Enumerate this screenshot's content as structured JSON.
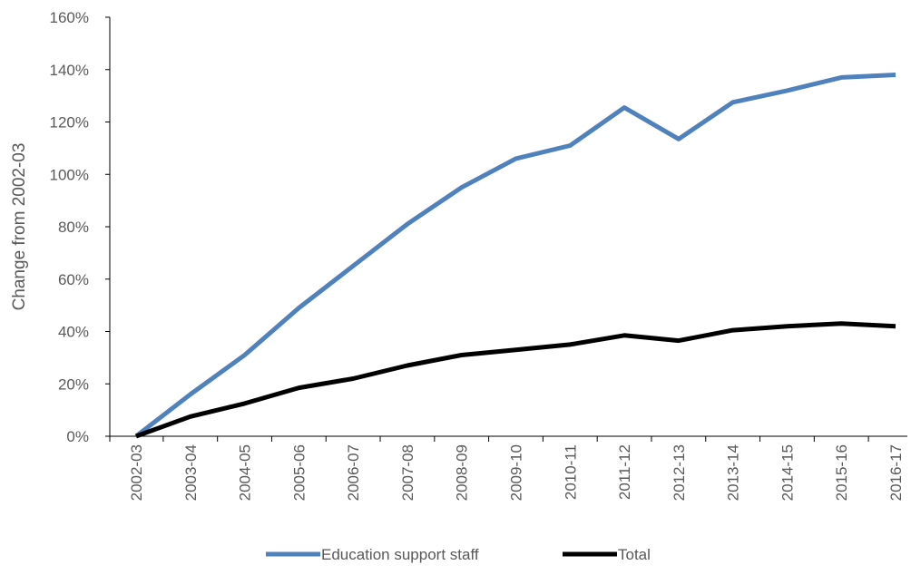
{
  "chart_data": {
    "type": "line",
    "title": "",
    "xlabel": "",
    "ylabel": "Change from 2002-03",
    "categories": [
      "2002-03",
      "2003-04",
      "2004-05",
      "2005-06",
      "2006-07",
      "2007-08",
      "2008-09",
      "2009-10",
      "2010-11",
      "2011-12",
      "2012-13",
      "2013-14",
      "2014-15",
      "2015-16",
      "2016-17"
    ],
    "series": [
      {
        "name": "Education support staff",
        "color": "#4F81BD",
        "values": [
          0,
          16,
          31,
          49,
          65,
          81,
          95,
          106,
          111,
          125.5,
          113.5,
          127.5,
          132,
          137,
          138
        ]
      },
      {
        "name": "Total",
        "color": "#000000",
        "values": [
          0,
          7.5,
          12.5,
          18.5,
          22,
          27,
          31,
          33,
          35,
          38.5,
          36.5,
          40.5,
          42,
          43,
          42
        ]
      }
    ],
    "ylim": [
      0,
      160
    ],
    "yticks": [
      0,
      20,
      40,
      60,
      80,
      100,
      120,
      140,
      160
    ],
    "ytick_labels": [
      "0%",
      "20%",
      "40%",
      "60%",
      "80%",
      "100%",
      "120%",
      "140%",
      "160%"
    ],
    "grid": false,
    "legend_position": "bottom"
  }
}
